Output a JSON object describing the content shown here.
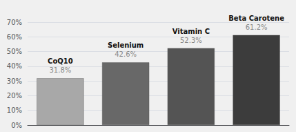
{
  "chart_data": {
    "type": "bar",
    "categories": [
      "CoQ10",
      "Selenium",
      "Vitamin C",
      "Beta Carotene"
    ],
    "values": [
      31.8,
      42.6,
      52.3,
      61.2
    ],
    "value_labels": [
      "31.8%",
      "42.6%",
      "52.3%",
      "61.2%"
    ],
    "colors": [
      "#a8a8a8",
      "#686868",
      "#545454",
      "#3c3c3c"
    ],
    "ylim": [
      0,
      70
    ],
    "yticks": [
      {
        "value": 0,
        "label": "0%"
      },
      {
        "value": 10,
        "label": "10%"
      },
      {
        "value": 20,
        "label": "20%"
      },
      {
        "value": 30,
        "label": "30%"
      },
      {
        "value": 40,
        "label": "40%"
      },
      {
        "value": 50,
        "label": "50%"
      },
      {
        "value": 60,
        "label": "60%"
      },
      {
        "value": 70,
        "label": "70%"
      }
    ],
    "grid": true,
    "data_labels": true,
    "tick_labels": "y"
  }
}
